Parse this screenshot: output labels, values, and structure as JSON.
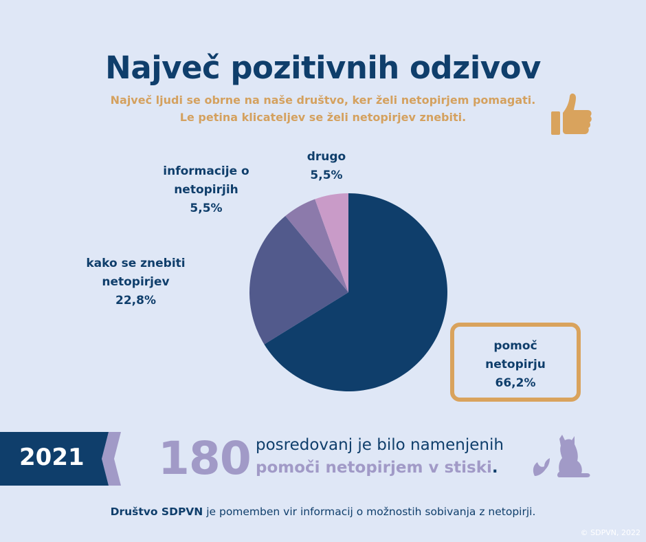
{
  "header": {
    "title": "Največ pozitivnih odzivov",
    "subtitle_line1": "Največ ljudi se obrne na naše društvo, ker želi netopirjem pomagati.",
    "subtitle_line2": "Le petina klicateljev se želi netopirjev znebiti."
  },
  "chart_data": {
    "type": "pie",
    "slices": [
      {
        "label_lines": [
          "pomoč",
          "netopirju"
        ],
        "value": 66.2,
        "value_label": "66,2%",
        "color": "#0f3e6b"
      },
      {
        "label_lines": [
          "kako se znebiti",
          "netopirjev"
        ],
        "value": 22.8,
        "value_label": "22,8%",
        "color": "#525a8c"
      },
      {
        "label_lines": [
          "informacije o",
          "netopirjih"
        ],
        "value": 5.5,
        "value_label": "5,5%",
        "color": "#8c7aab"
      },
      {
        "label_lines": [
          "drugo"
        ],
        "value": 5.5,
        "value_label": "5,5%",
        "color": "#c99bc8"
      }
    ],
    "highlight_color": "#d9a35d"
  },
  "stats": {
    "year": "2021",
    "number": "180",
    "line1": "posredovanj je bilo namenjenih",
    "line2": "pomoči netopirjem v stiski",
    "line2_end": "."
  },
  "footer": {
    "org": "Društvo SDPVN",
    "text": " je pomemben vir informacij o možnostih sobivanja z netopirji."
  },
  "copyright": "© SDPVN, 2022",
  "icons": [
    "thumbs-up-icon",
    "bat-icon",
    "cat-icon"
  ],
  "colors": {
    "background": "#dfe7f6",
    "navy": "#0f3e6b",
    "gold": "#d4a15f",
    "lavender": "#a19ac7"
  }
}
